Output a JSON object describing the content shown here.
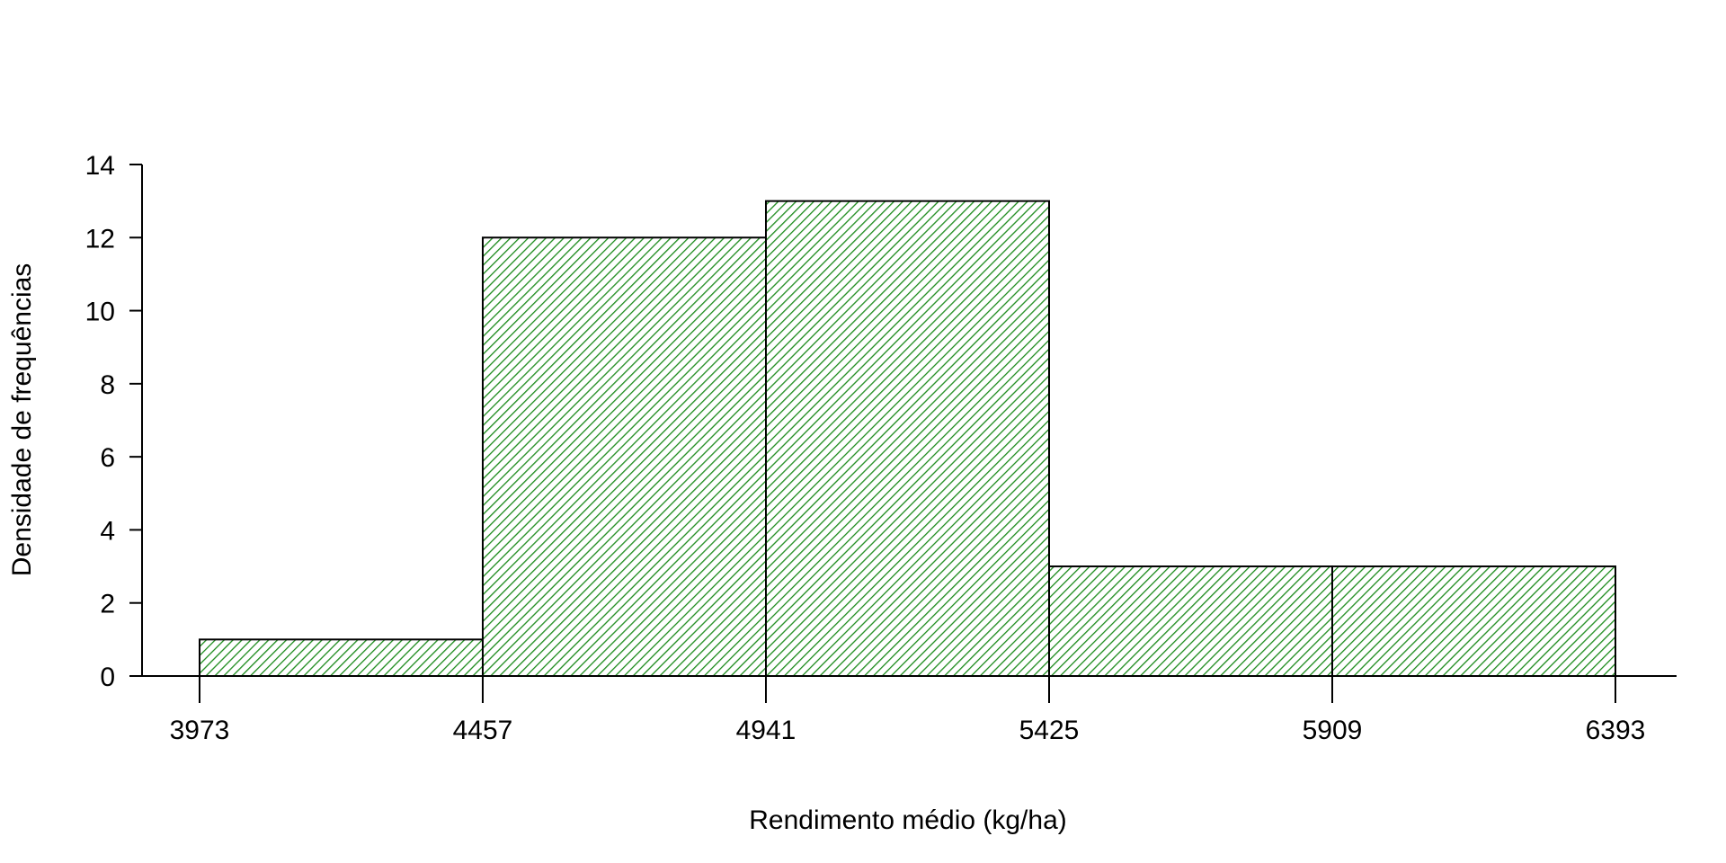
{
  "chart_data": {
    "type": "bar",
    "title": "",
    "xlabel": "Rendimento médio (kg/ha)",
    "ylabel": "Densidade de frequências",
    "bin_edges": [
      3973,
      4457,
      4941,
      5425,
      5909,
      6393
    ],
    "x_tick_labels": [
      "3973",
      "4457",
      "4941",
      "5425",
      "5909",
      "6393"
    ],
    "values": [
      1,
      12,
      13,
      3,
      3
    ],
    "ylim": [
      0,
      14
    ],
    "y_ticks": [
      0,
      2,
      4,
      6,
      8,
      10,
      12,
      14
    ],
    "y_tick_labels": [
      "0",
      "2",
      "4",
      "6",
      "8",
      "10",
      "12",
      "14"
    ],
    "grid": false,
    "legend": "none",
    "fill_pattern": "diagonal-hatch",
    "colors": {
      "hatch": "#1a8a1a",
      "outline": "#000000",
      "axis": "#000000"
    }
  }
}
